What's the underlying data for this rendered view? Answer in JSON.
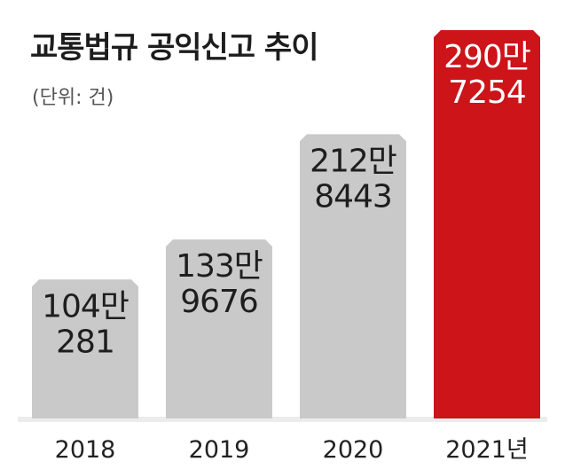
{
  "chart_data": {
    "type": "bar",
    "title": "교통법규 공익신고 추이",
    "unit_note": "(단위: 건)",
    "categories": [
      "2018",
      "2019",
      "2020",
      "2021년"
    ],
    "values": [
      1040281,
      1339676,
      2128443,
      2907254
    ],
    "value_labels": [
      [
        "104만",
        "281"
      ],
      [
        "133만",
        "9676"
      ],
      [
        "212만",
        "8443"
      ],
      [
        "290만",
        "7254"
      ]
    ],
    "highlight_index": 3,
    "colors": {
      "bar": "#c9c9c9",
      "highlight": "#cc1419",
      "baseline": "#ececec"
    },
    "legend": "none",
    "grid": false
  }
}
